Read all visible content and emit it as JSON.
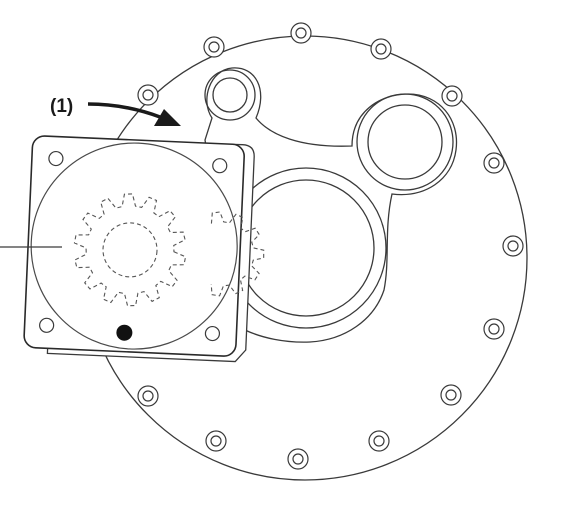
{
  "diagram": {
    "callout_label": "(1)",
    "colors": {
      "line": "#3a3a3a",
      "line_light": "#6a6a6a",
      "dashed": "#555555",
      "dot": "#111111",
      "arrow": "#1a1a1a",
      "background": "#ffffff"
    },
    "components": {
      "housing": "circular-housing-plate",
      "flange_bolts": "flange-bolt-holes",
      "cover_plate": "square-pump-cover-plate",
      "gears": "hidden-gear-pair",
      "marker": "alignment-dot",
      "arrow": "assembly-direction-arrow"
    }
  }
}
